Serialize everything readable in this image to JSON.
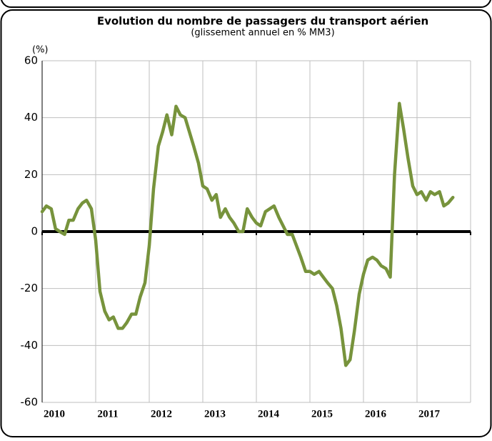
{
  "chart_data": {
    "type": "line",
    "title": "Evolution du nombre de passagers du transport aérien",
    "subtitle": "(glissement annuel en % MM3)",
    "y_label": "(%)",
    "x": [
      2010,
      2010.08,
      2010.17,
      2010.25,
      2010.33,
      2010.42,
      2010.5,
      2010.58,
      2010.67,
      2010.75,
      2010.83,
      2010.92,
      2011,
      2011.08,
      2011.17,
      2011.25,
      2011.33,
      2011.42,
      2011.5,
      2011.58,
      2011.67,
      2011.75,
      2011.83,
      2011.92,
      2012,
      2012.08,
      2012.17,
      2012.25,
      2012.33,
      2012.42,
      2012.5,
      2012.58,
      2012.67,
      2012.75,
      2012.83,
      2012.92,
      2013,
      2013.08,
      2013.17,
      2013.25,
      2013.33,
      2013.42,
      2013.5,
      2013.58,
      2013.67,
      2013.75,
      2013.83,
      2013.92,
      2014,
      2014.08,
      2014.17,
      2014.25,
      2014.33,
      2014.42,
      2014.5,
      2014.58,
      2014.67,
      2014.75,
      2014.83,
      2014.92,
      2015,
      2015.08,
      2015.17,
      2015.25,
      2015.33,
      2015.42,
      2015.5,
      2015.58,
      2015.67,
      2015.75,
      2015.83,
      2015.92,
      2016,
      2016.08,
      2016.17,
      2016.25,
      2016.33,
      2016.42,
      2016.5,
      2016.58,
      2016.67,
      2016.75,
      2016.83,
      2016.92,
      2017,
      2017.08,
      2017.17,
      2017.25,
      2017.33,
      2017.42,
      2017.5,
      2017.58,
      2017.67
    ],
    "series": [
      {
        "color": "#77933c",
        "values": [
          7,
          9,
          8,
          1,
          0,
          -1,
          4,
          4,
          8,
          10,
          11,
          8,
          -3,
          -21,
          -28,
          -31,
          -30,
          -34,
          -34,
          -32,
          -29,
          -29,
          -23,
          -18,
          -5,
          15,
          30,
          35,
          41,
          34,
          44,
          41,
          40,
          35,
          30,
          24,
          16,
          15,
          11,
          13,
          5,
          8,
          5,
          3,
          0,
          0,
          8,
          5,
          3,
          2,
          7,
          8,
          9,
          5,
          2,
          -1,
          -1,
          -5,
          -9,
          -14,
          -14,
          -15,
          -14,
          -16,
          -18,
          -20,
          -26,
          -34,
          -47,
          -45,
          -35,
          -22,
          -15,
          -10,
          -9,
          -10,
          -12,
          -13,
          -16,
          20,
          45,
          36,
          26,
          16,
          13,
          14,
          11,
          14,
          13,
          14,
          9,
          10,
          12
        ]
      }
    ],
    "xlim": [
      2010,
      2018
    ],
    "xticks": [
      2010,
      2011,
      2012,
      2013,
      2014,
      2015,
      2016,
      2017
    ],
    "ylim": [
      -60,
      60
    ],
    "yticks": [
      -60,
      -40,
      -20,
      0,
      20,
      40,
      60
    ],
    "grid": true
  }
}
